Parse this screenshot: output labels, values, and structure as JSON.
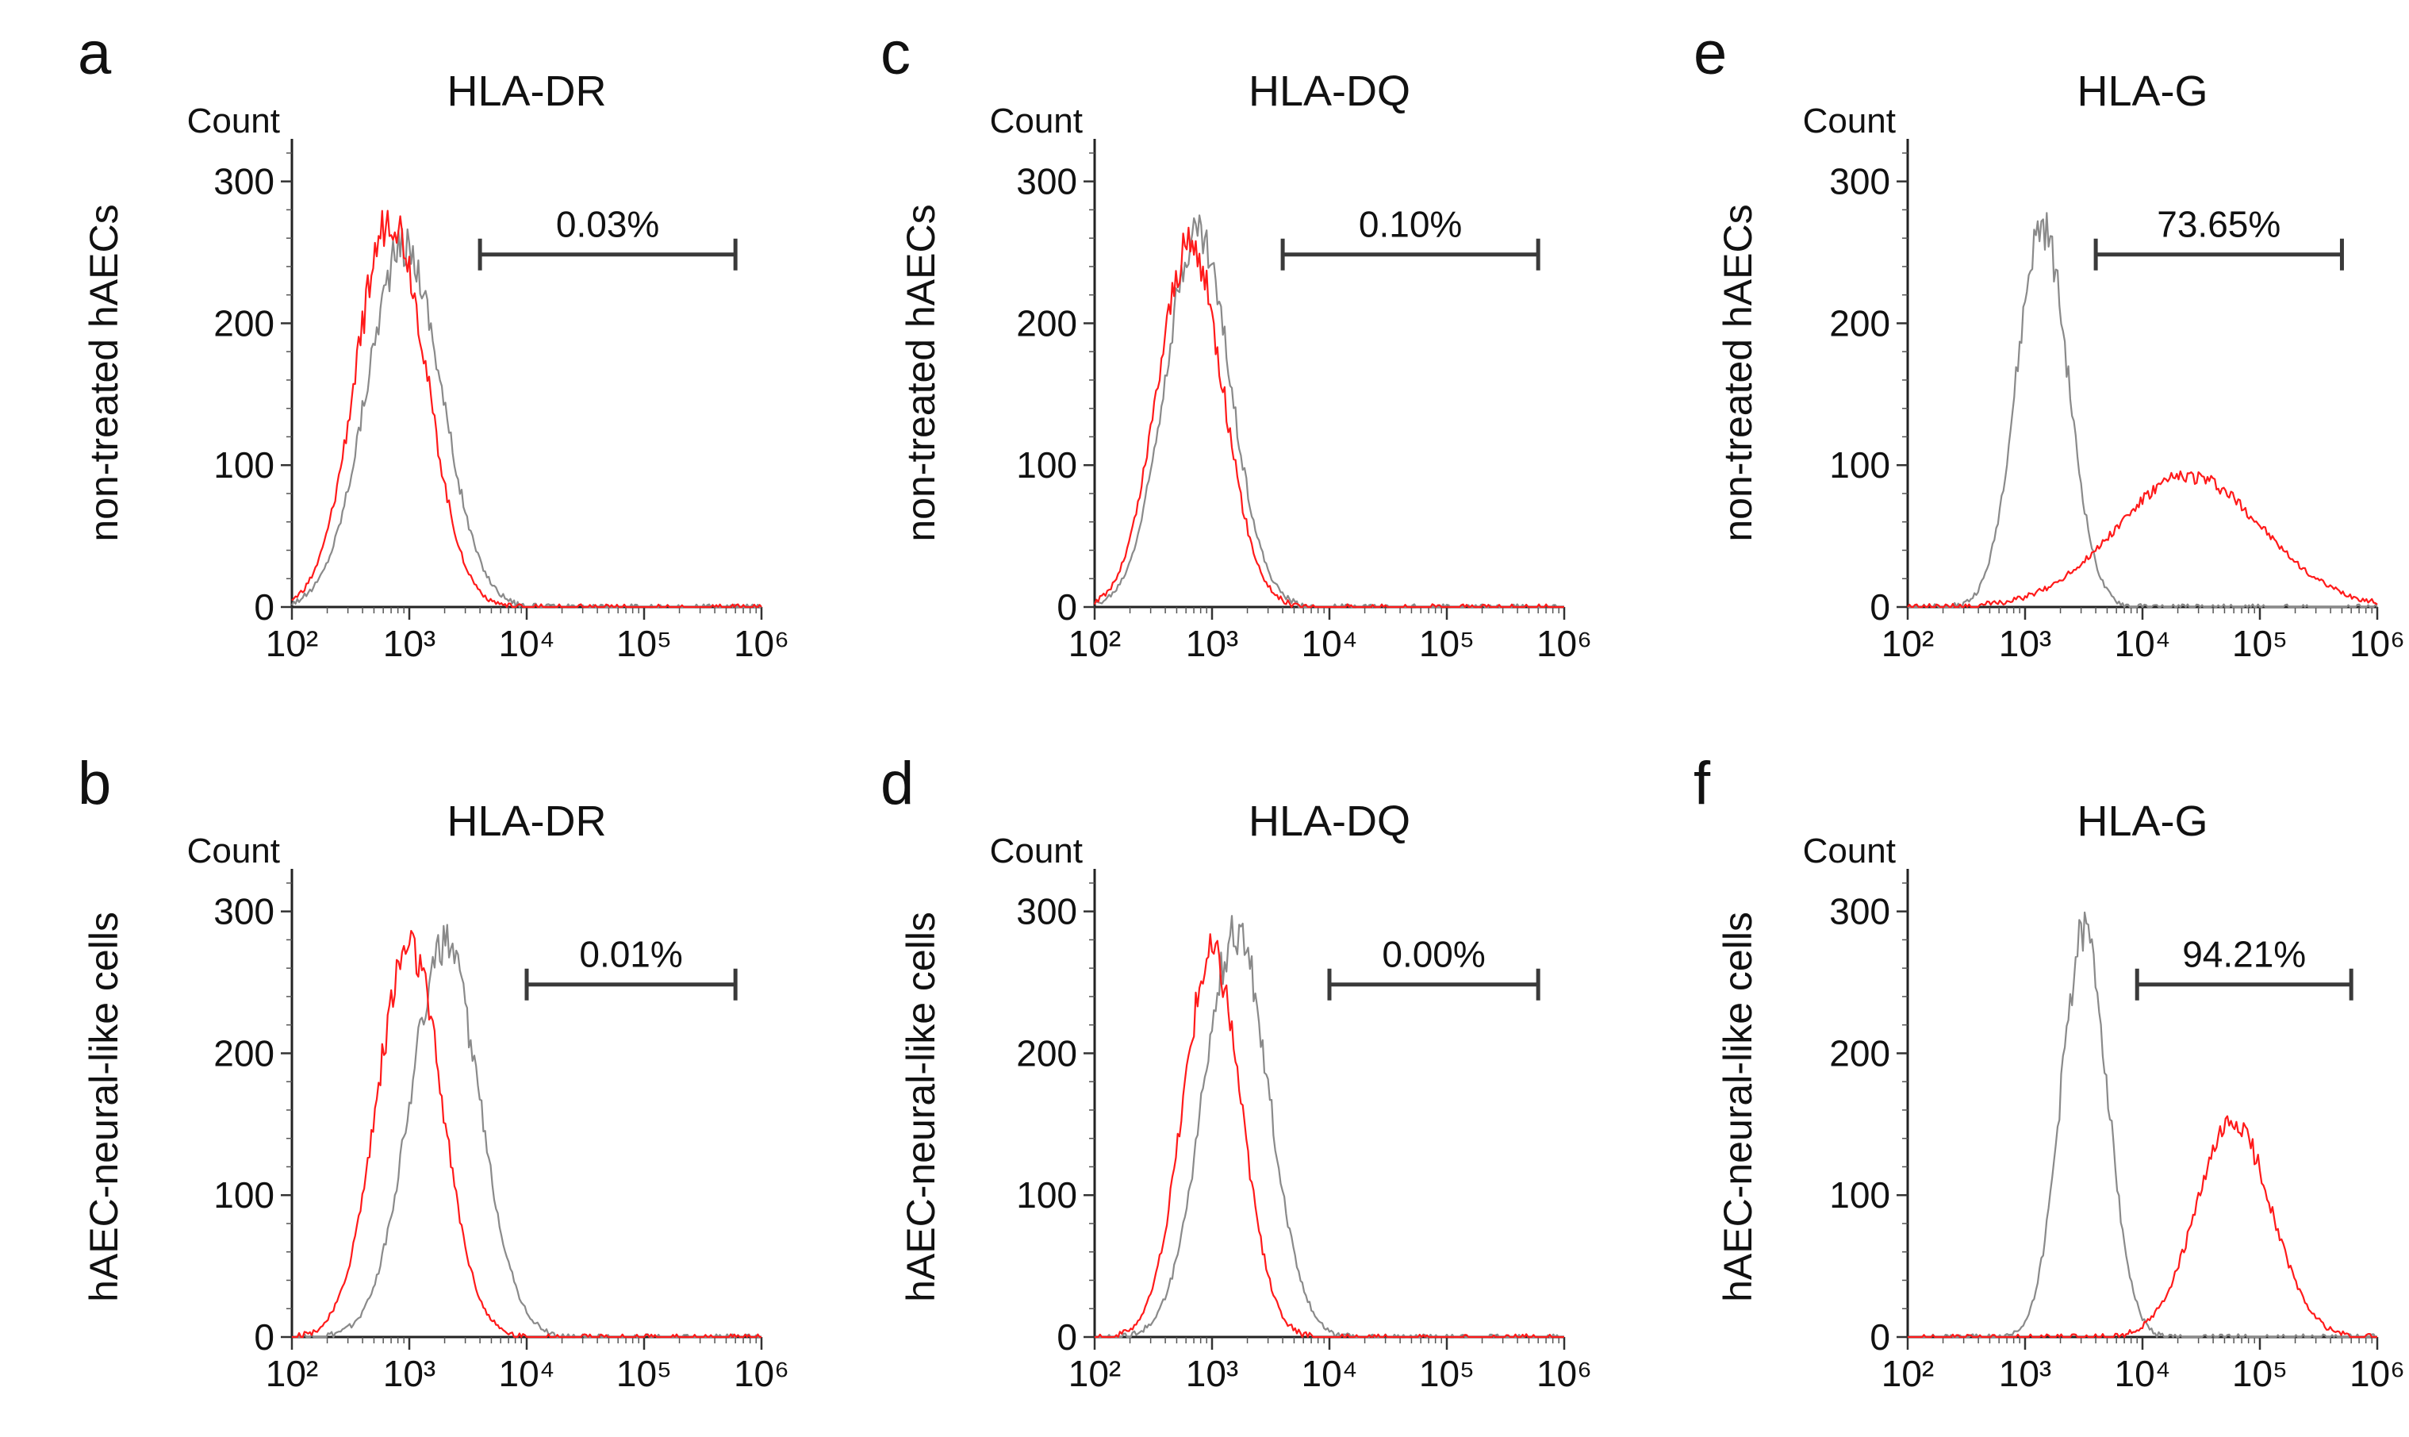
{
  "figure": {
    "row_labels": [
      "non-treated hAECs",
      "hAEC-neural-like cells"
    ],
    "count_label": "Count"
  },
  "colors": {
    "isotype": "#8a8a8a",
    "sample": "#ff1a1a",
    "axis": "#222222"
  },
  "chart_data": [
    {
      "panel": "a",
      "type": "line",
      "title": "HLA-DR",
      "xlabel": "",
      "ylabel": "Count",
      "x_scale": "log",
      "xlim": [
        100,
        1000000
      ],
      "ylim": [
        0,
        330
      ],
      "x_ticks": [
        "10²",
        "10³",
        "10⁴",
        "10⁵",
        "10⁶"
      ],
      "y_ticks": [
        0,
        100,
        200,
        300
      ],
      "gate": {
        "label": "0.03%",
        "x_start": 4000,
        "x_end": 600000
      },
      "series": [
        {
          "color": "gray",
          "mode": "lognormal",
          "peak_x": 900,
          "peak_count": 255,
          "width_decades": 0.32
        },
        {
          "color": "red",
          "mode": "lognormal",
          "peak_x": 700,
          "peak_count": 275,
          "width_decades": 0.3
        }
      ]
    },
    {
      "panel": "c",
      "type": "line",
      "title": "HLA-DQ",
      "xlabel": "",
      "ylabel": "Count",
      "x_scale": "log",
      "xlim": [
        100,
        1000000
      ],
      "ylim": [
        0,
        330
      ],
      "x_ticks": [
        "10²",
        "10³",
        "10⁴",
        "10⁵",
        "10⁶"
      ],
      "y_ticks": [
        0,
        100,
        200,
        300
      ],
      "gate": {
        "label": "0.10%",
        "x_start": 4000,
        "x_end": 600000
      },
      "series": [
        {
          "color": "gray",
          "mode": "lognormal",
          "peak_x": 750,
          "peak_count": 265,
          "width_decades": 0.28
        },
        {
          "color": "red",
          "mode": "lognormal",
          "peak_x": 650,
          "peak_count": 255,
          "width_decades": 0.28
        }
      ]
    },
    {
      "panel": "e",
      "type": "line",
      "title": "HLA-G",
      "xlabel": "",
      "ylabel": "Count",
      "x_scale": "log",
      "xlim": [
        100,
        1000000
      ],
      "ylim": [
        0,
        330
      ],
      "x_ticks": [
        "10²",
        "10³",
        "10⁴",
        "10⁵",
        "10⁶"
      ],
      "y_ticks": [
        0,
        100,
        200,
        300
      ],
      "gate": {
        "label": "73.65%",
        "x_start": 4000,
        "x_end": 500000
      },
      "series": [
        {
          "color": "gray",
          "mode": "lognormal",
          "peak_x": 1400,
          "peak_count": 268,
          "width_decades": 0.22
        },
        {
          "color": "red",
          "mode": "lognormal",
          "peak_x": 25000,
          "peak_count": 92,
          "width_decades": 0.62
        }
      ]
    },
    {
      "panel": "b",
      "type": "line",
      "title": "HLA-DR",
      "xlabel": "",
      "ylabel": "Count",
      "x_scale": "log",
      "xlim": [
        100,
        1000000
      ],
      "ylim": [
        0,
        330
      ],
      "x_ticks": [
        "10²",
        "10³",
        "10⁴",
        "10⁵",
        "10⁶"
      ],
      "y_ticks": [
        0,
        100,
        200,
        300
      ],
      "gate": {
        "label": "0.01%",
        "x_start": 10000,
        "x_end": 600000
      },
      "series": [
        {
          "color": "gray",
          "mode": "lognormal",
          "peak_x": 2000,
          "peak_count": 275,
          "width_decades": 0.3
        },
        {
          "color": "red",
          "mode": "lognormal",
          "peak_x": 1000,
          "peak_count": 275,
          "width_decades": 0.28
        }
      ]
    },
    {
      "panel": "d",
      "type": "line",
      "title": "HLA-DQ",
      "xlabel": "",
      "ylabel": "Count",
      "x_scale": "log",
      "xlim": [
        100,
        1000000
      ],
      "ylim": [
        0,
        330
      ],
      "x_ticks": [
        "10²",
        "10³",
        "10⁴",
        "10⁵",
        "10⁶"
      ],
      "y_ticks": [
        0,
        100,
        200,
        300
      ],
      "gate": {
        "label": "0.00%",
        "x_start": 10000,
        "x_end": 600000
      },
      "series": [
        {
          "color": "gray",
          "mode": "lognormal",
          "peak_x": 1600,
          "peak_count": 285,
          "width_decades": 0.28
        },
        {
          "color": "red",
          "mode": "lognormal",
          "peak_x": 1000,
          "peak_count": 272,
          "width_decades": 0.25
        }
      ]
    },
    {
      "panel": "f",
      "type": "line",
      "title": "HLA-G",
      "xlabel": "",
      "ylabel": "Count",
      "x_scale": "log",
      "xlim": [
        100,
        1000000
      ],
      "ylim": [
        0,
        330
      ],
      "x_ticks": [
        "10²",
        "10³",
        "10⁴",
        "10⁵",
        "10⁶"
      ],
      "y_ticks": [
        0,
        100,
        200,
        300
      ],
      "gate": {
        "label": "94.21%",
        "x_start": 9000,
        "x_end": 600000
      },
      "series": [
        {
          "color": "gray",
          "mode": "lognormal",
          "peak_x": 3200,
          "peak_count": 285,
          "width_decades": 0.2
        },
        {
          "color": "red",
          "mode": "lognormal",
          "peak_x": 60000,
          "peak_count": 150,
          "width_decades": 0.32
        }
      ]
    }
  ]
}
